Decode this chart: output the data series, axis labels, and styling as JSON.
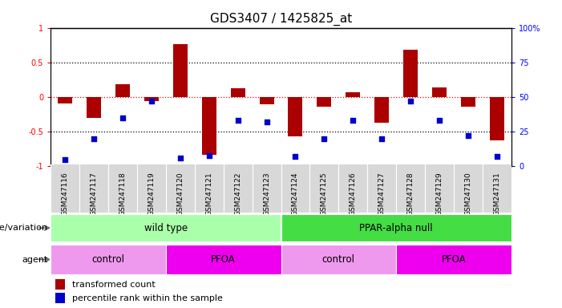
{
  "title": "GDS3407 / 1425825_at",
  "samples": [
    "GSM247116",
    "GSM247117",
    "GSM247118",
    "GSM247119",
    "GSM247120",
    "GSM247121",
    "GSM247122",
    "GSM247123",
    "GSM247124",
    "GSM247125",
    "GSM247126",
    "GSM247127",
    "GSM247128",
    "GSM247129",
    "GSM247130",
    "GSM247131"
  ],
  "red_bars": [
    -0.09,
    -0.3,
    0.19,
    -0.06,
    0.76,
    -0.83,
    0.13,
    -0.1,
    -0.57,
    -0.14,
    0.07,
    -0.37,
    0.68,
    0.14,
    -0.14,
    -0.62
  ],
  "blue_dots_pct": [
    5,
    20,
    35,
    47,
    6,
    8,
    33,
    32,
    7,
    20,
    33,
    20,
    47,
    33,
    22,
    7
  ],
  "ylim": [
    -1,
    1
  ],
  "right_yticks": [
    0,
    25,
    50,
    75,
    100
  ],
  "right_yticklabels": [
    "0",
    "25",
    "50",
    "75",
    "100%"
  ],
  "left_yticks": [
    -1,
    -0.5,
    0,
    0.5,
    1
  ],
  "left_yticklabels": [
    "-1",
    "-0.5",
    "0",
    "0.5",
    "1"
  ],
  "bar_color": "#aa0000",
  "dot_color": "#0000cc",
  "background_color": "#ffffff",
  "plot_bg_color": "#ffffff",
  "genotype_groups": [
    {
      "label": "wild type",
      "start": 0,
      "end": 7,
      "color": "#aaffaa"
    },
    {
      "label": "PPAR-alpha null",
      "start": 8,
      "end": 15,
      "color": "#44dd44"
    }
  ],
  "agent_groups": [
    {
      "label": "control",
      "start": 0,
      "end": 3,
      "color": "#ee99ee"
    },
    {
      "label": "PFOA",
      "start": 4,
      "end": 7,
      "color": "#ee00ee"
    },
    {
      "label": "control",
      "start": 8,
      "end": 11,
      "color": "#ee99ee"
    },
    {
      "label": "PFOA",
      "start": 12,
      "end": 15,
      "color": "#ee00ee"
    }
  ],
  "legend_items": [
    {
      "label": "transformed count",
      "color": "#aa0000"
    },
    {
      "label": "percentile rank within the sample",
      "color": "#0000cc"
    }
  ],
  "genotype_label": "genotype/variation",
  "agent_label": "agent",
  "title_fontsize": 11,
  "tick_fontsize": 7,
  "bar_width": 0.5
}
